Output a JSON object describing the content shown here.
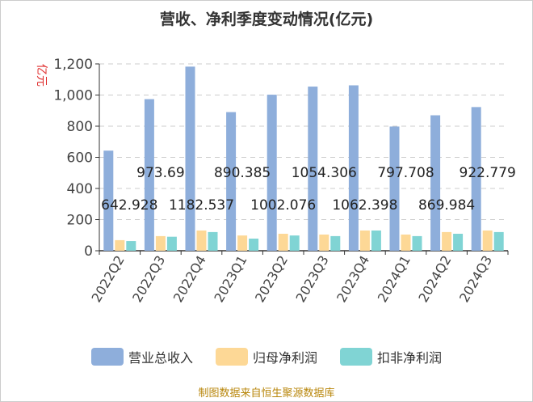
{
  "chart_data": {
    "type": "bar",
    "title": "营收、净利季度变动情况(亿元)",
    "ylabel": "亿元",
    "ylim": [
      0,
      1200
    ],
    "yticks": [
      "0",
      "200",
      "400",
      "600",
      "800",
      "1,000",
      "1,200"
    ],
    "grid": true,
    "legend_position": "bottom",
    "categories": [
      "2022Q2",
      "2022Q3",
      "2022Q4",
      "2023Q1",
      "2023Q2",
      "2023Q3",
      "2023Q4",
      "2024Q1",
      "2024Q2",
      "2024Q3"
    ],
    "series": [
      {
        "name": "营业总收入",
        "color": "#8eaedb",
        "values": [
          642.928,
          973.69,
          1182.537,
          890.385,
          1002.076,
          1054.306,
          1062.398,
          797.708,
          869.984,
          922.779
        ],
        "labels": [
          "642.928",
          "973.69",
          "1182.537",
          "890.385",
          "1002.076",
          "1054.306",
          "1062.398",
          "797.708",
          "869.984",
          "922.779"
        ]
      },
      {
        "name": "归母净利润",
        "color": "#fdd896",
        "values": [
          68,
          94,
          130,
          98,
          109,
          104,
          130,
          104,
          120,
          130
        ]
      },
      {
        "name": "扣非净利润",
        "color": "#80d4d4",
        "values": [
          62,
          90,
          120,
          78,
          98,
          94,
          130,
          94,
          109,
          120
        ]
      }
    ]
  },
  "source": "制图数据来自恒生聚源数据库"
}
